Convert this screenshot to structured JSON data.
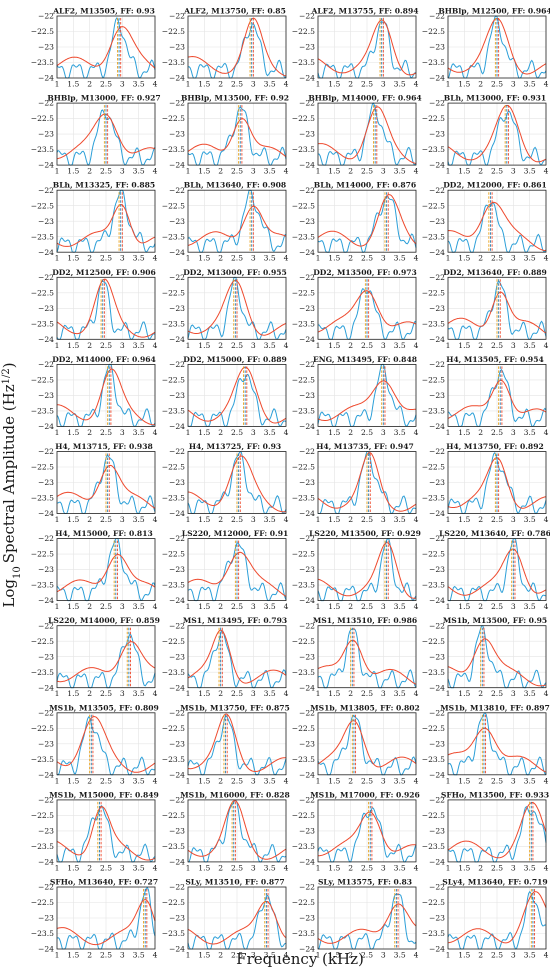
{
  "figure": {
    "xlabel": "Frequency (kHz)",
    "ylabel": "Log10 Spectral Amplitude (Hz1/2)"
  },
  "colors": {
    "waveform_spectrum": "#2c9fd8",
    "model_spectrum": "#ee4a2e",
    "marker_1": "#e8a21c",
    "marker_2": "#2c7fb0",
    "marker_3": "#ee4a2e"
  },
  "chart_data": {
    "type": "line",
    "grid": true,
    "layout": "11 rows x 4 columns",
    "xlim": [
      1,
      4
    ],
    "ylim": [
      -24,
      -22
    ],
    "x_ticks": [
      "1",
      "1.5",
      "2",
      "2.5",
      "3",
      "3.5",
      "4"
    ],
    "y_ticks": [
      "-22",
      "-22.5",
      "-23",
      "-23.5",
      "-24"
    ],
    "panels": [
      {
        "title": "ALF2, M13505, FF: 0.93",
        "peak_khz": 2.9
      },
      {
        "title": "ALF2, M13750, FF: 0.85",
        "peak_khz": 2.95
      },
      {
        "title": "ALF2, M13755, FF: 0.894",
        "peak_khz": 2.95
      },
      {
        "title": "BHBlp, M12500, FF: 0.964",
        "peak_khz": 2.5
      },
      {
        "title": "BHBlp, M13000, FF: 0.927",
        "peak_khz": 2.5
      },
      {
        "title": "BHBlp, M13500, FF: 0.92",
        "peak_khz": 2.6
      },
      {
        "title": "BHBlp, M14000, FF: 0.964",
        "peak_khz": 2.75
      },
      {
        "title": "BLh, M13000, FF: 0.931",
        "peak_khz": 2.8
      },
      {
        "title": "BLh, M13325, FF: 0.885",
        "peak_khz": 2.95
      },
      {
        "title": "BLh, M13640, FF: 0.908",
        "peak_khz": 2.95
      },
      {
        "title": "BLh, M14000, FF: 0.876",
        "peak_khz": 3.1
      },
      {
        "title": "DD2, M12000, FF: 0.861",
        "peak_khz": 2.3
      },
      {
        "title": "DD2, M12500, FF: 0.906",
        "peak_khz": 2.4
      },
      {
        "title": "DD2, M13000, FF: 0.955",
        "peak_khz": 2.45
      },
      {
        "title": "DD2, M13500, FF: 0.973",
        "peak_khz": 2.5
      },
      {
        "title": "DD2, M13640, FF: 0.889",
        "peak_khz": 2.55
      },
      {
        "title": "DD2, M14000, FF: 0.964",
        "peak_khz": 2.6
      },
      {
        "title": "DD2, M15000, FF: 0.889",
        "peak_khz": 2.75
      },
      {
        "title": "ENG, M13495, FF: 0.848",
        "peak_khz": 3.0
      },
      {
        "title": "H4, M13505, FF: 0.954",
        "peak_khz": 2.6
      },
      {
        "title": "H4, M13715, FF: 0.938",
        "peak_khz": 2.55
      },
      {
        "title": "H4, M13725, FF: 0.93",
        "peak_khz": 2.55
      },
      {
        "title": "H4, M13735, FF: 0.947",
        "peak_khz": 2.55
      },
      {
        "title": "H4, M13750, FF: 0.892",
        "peak_khz": 2.5
      },
      {
        "title": "H4, M15000, FF: 0.813",
        "peak_khz": 2.8
      },
      {
        "title": "LS220, M12000, FF: 0.91",
        "peak_khz": 2.5
      },
      {
        "title": "LS220, M13500, FF: 0.929",
        "peak_khz": 3.1
      },
      {
        "title": "LS220, M13640, FF: 0.786",
        "peak_khz": 3.0
      },
      {
        "title": "LS220, M14000, FF: 0.859",
        "peak_khz": 3.2
      },
      {
        "title": "MS1, M13495, FF: 0.793",
        "peak_khz": 2.0
      },
      {
        "title": "MS1, M13510, FF: 0.986",
        "peak_khz": 2.05
      },
      {
        "title": "MS1b, M13500, FF: 0.95",
        "peak_khz": 2.05
      },
      {
        "title": "MS1b, M13505, FF: 0.809",
        "peak_khz": 2.05
      },
      {
        "title": "MS1b, M13750, FF: 0.875",
        "peak_khz": 2.15
      },
      {
        "title": "MS1b, M13805, FF: 0.802",
        "peak_khz": 2.1
      },
      {
        "title": "MS1b, M13810, FF: 0.897",
        "peak_khz": 2.1
      },
      {
        "title": "MS1b, M15000, FF: 0.849",
        "peak_khz": 2.3
      },
      {
        "title": "MS1b, M16000, FF: 0.828",
        "peak_khz": 2.4
      },
      {
        "title": "MS1b, M17000, FF: 0.926",
        "peak_khz": 2.6
      },
      {
        "title": "SFHo, M13500, FF: 0.933",
        "peak_khz": 3.55
      },
      {
        "title": "SFHo, M13640, FF: 0.727",
        "peak_khz": 3.7
      },
      {
        "title": "SLy, M13510, FF: 0.877",
        "peak_khz": 3.4
      },
      {
        "title": "SLy, M13575, FF: 0.83",
        "peak_khz": 3.4
      },
      {
        "title": "SLy4, M13640, FF: 0.719",
        "peak_khz": 3.6
      }
    ]
  }
}
